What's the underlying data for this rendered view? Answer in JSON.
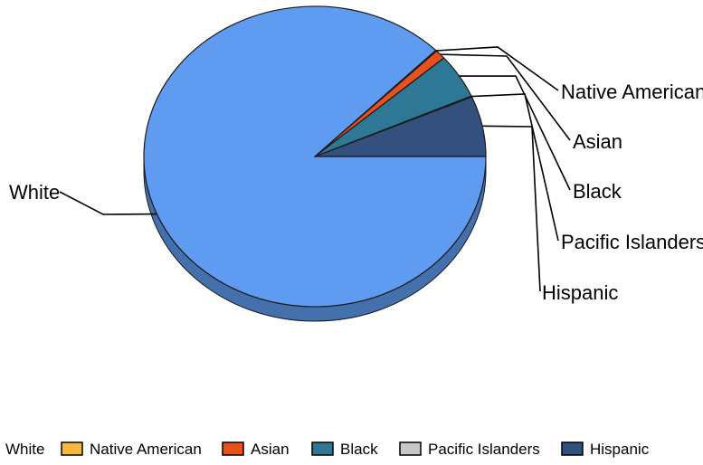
{
  "chart_data": {
    "type": "pie",
    "title": "",
    "categories": [
      "White",
      "Native American",
      "Asian",
      "Black",
      "Pacific Islanders",
      "Hispanic"
    ],
    "values": [
      87.5,
      0.1,
      1.0,
      4.8,
      0.1,
      6.5
    ],
    "unit": "%",
    "colors": [
      "#5f9bf0",
      "#f6b93b",
      "#e8501e",
      "#2e7896",
      "#c8c8c8",
      "#34507e"
    ],
    "legend_position": "bottom",
    "three_d": true
  }
}
